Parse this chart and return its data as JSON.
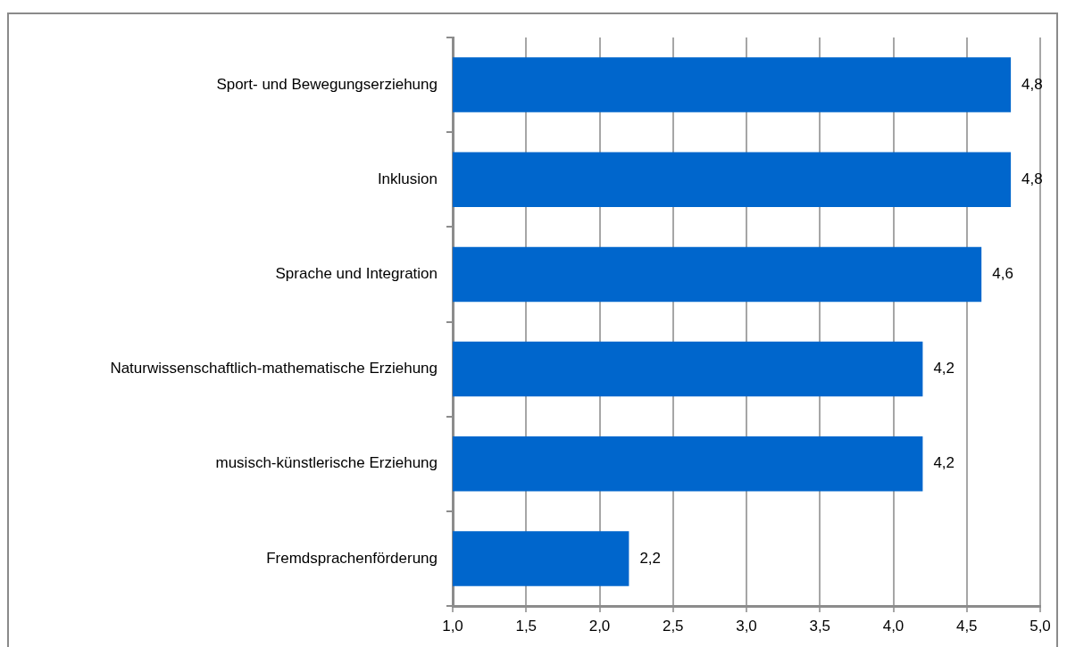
{
  "chart_data": {
    "type": "bar",
    "orientation": "horizontal",
    "categories": [
      "Sport- und Bewegungserziehung",
      "Inklusion",
      "Sprache und Integration",
      "Naturwissenschaftlich-mathematische Erziehung",
      "musisch-künstlerische Erziehung",
      "Fremdsprachenförderung"
    ],
    "values": [
      4.8,
      4.8,
      4.6,
      4.2,
      4.2,
      2.2
    ],
    "value_labels": [
      "4,8",
      "4,8",
      "4,6",
      "4,2",
      "4,2",
      "2,2"
    ],
    "color": "#0066cc",
    "xlim": [
      1,
      5
    ],
    "xticks": [
      {
        "value": 1,
        "label": "1,0"
      },
      {
        "value": 1.5,
        "label": "1,5"
      },
      {
        "value": 2,
        "label": "2,0"
      },
      {
        "value": 2.5,
        "label": "2,5"
      },
      {
        "value": 3,
        "label": "3,0"
      },
      {
        "value": 3.5,
        "label": "3,5"
      },
      {
        "value": 4,
        "label": "4,0"
      },
      {
        "value": 4.5,
        "label": "4,5"
      },
      {
        "value": 5,
        "label": "5,0"
      }
    ],
    "grid": "x",
    "legend": false
  }
}
